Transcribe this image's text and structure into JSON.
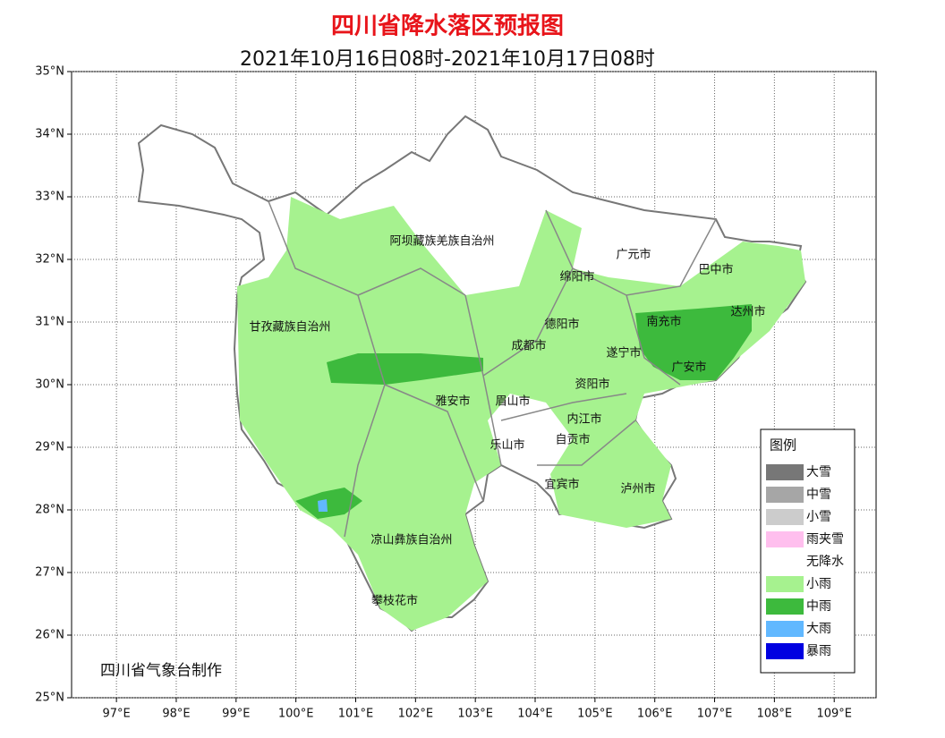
{
  "title": "四川省降水落区预报图",
  "subtitle": "2021年10月16日08时-2021年10月17日08时",
  "credit": "四川省气象台制作",
  "lonlim": [
    96.25,
    109.7
  ],
  "latlim": [
    25,
    35
  ],
  "lonticks": [
    {
      "value": 97,
      "label": "97°E"
    },
    {
      "value": 98,
      "label": "98°E"
    },
    {
      "value": 99,
      "label": "99°E"
    },
    {
      "value": 100,
      "label": "100°E"
    },
    {
      "value": 101,
      "label": "101°E"
    },
    {
      "value": 102,
      "label": "102°E"
    },
    {
      "value": 103,
      "label": "103°E"
    },
    {
      "value": 104,
      "label": "104°E"
    },
    {
      "value": 105,
      "label": "105°E"
    },
    {
      "value": 106,
      "label": "106°E"
    },
    {
      "value": 107,
      "label": "107°E"
    },
    {
      "value": 108,
      "label": "108°E"
    },
    {
      "value": 109,
      "label": "109°E"
    }
  ],
  "latticks": [
    {
      "value": 25,
      "label": "25°N"
    },
    {
      "value": 26,
      "label": "26°N"
    },
    {
      "value": 27,
      "label": "27°N"
    },
    {
      "value": 28,
      "label": "28°N"
    },
    {
      "value": 29,
      "label": "29°N"
    },
    {
      "value": 30,
      "label": "30°N"
    },
    {
      "value": 31,
      "label": "31°N"
    },
    {
      "value": 32,
      "label": "32°N"
    },
    {
      "value": 33,
      "label": "33°N"
    },
    {
      "value": 34,
      "label": "34°N"
    },
    {
      "value": 35,
      "label": "35°N"
    }
  ],
  "regions": [
    "阿坝藏族羌族自治州",
    "甘孜藏族自治州",
    "绵阳市",
    "广元市",
    "巴中市",
    "德阳市",
    "南充市",
    "达州市",
    "成都市",
    "遂宁市",
    "广安市",
    "雅安市",
    "眉山市",
    "资阳市",
    "内江市",
    "乐山市",
    "自贡市",
    "宜宾市",
    "泸州市",
    "凉山彝族自治州",
    "攀枝花市"
  ],
  "legend": {
    "title": "图例",
    "items": [
      {
        "label": "大雪",
        "color": "#777777"
      },
      {
        "label": "中雪",
        "color": "#a6a6a6"
      },
      {
        "label": "小雪",
        "color": "#cccccc"
      },
      {
        "label": "雨夹雪",
        "color": "#ffbfee"
      },
      {
        "label": "无降水",
        "color": "#ffffff"
      },
      {
        "label": "小雨",
        "color": "#a6f28f"
      },
      {
        "label": "中雨",
        "color": "#3dba3d"
      },
      {
        "label": "大雨",
        "color": "#61b8ff"
      },
      {
        "label": "暴雨",
        "color": "#0000e1"
      }
    ]
  }
}
